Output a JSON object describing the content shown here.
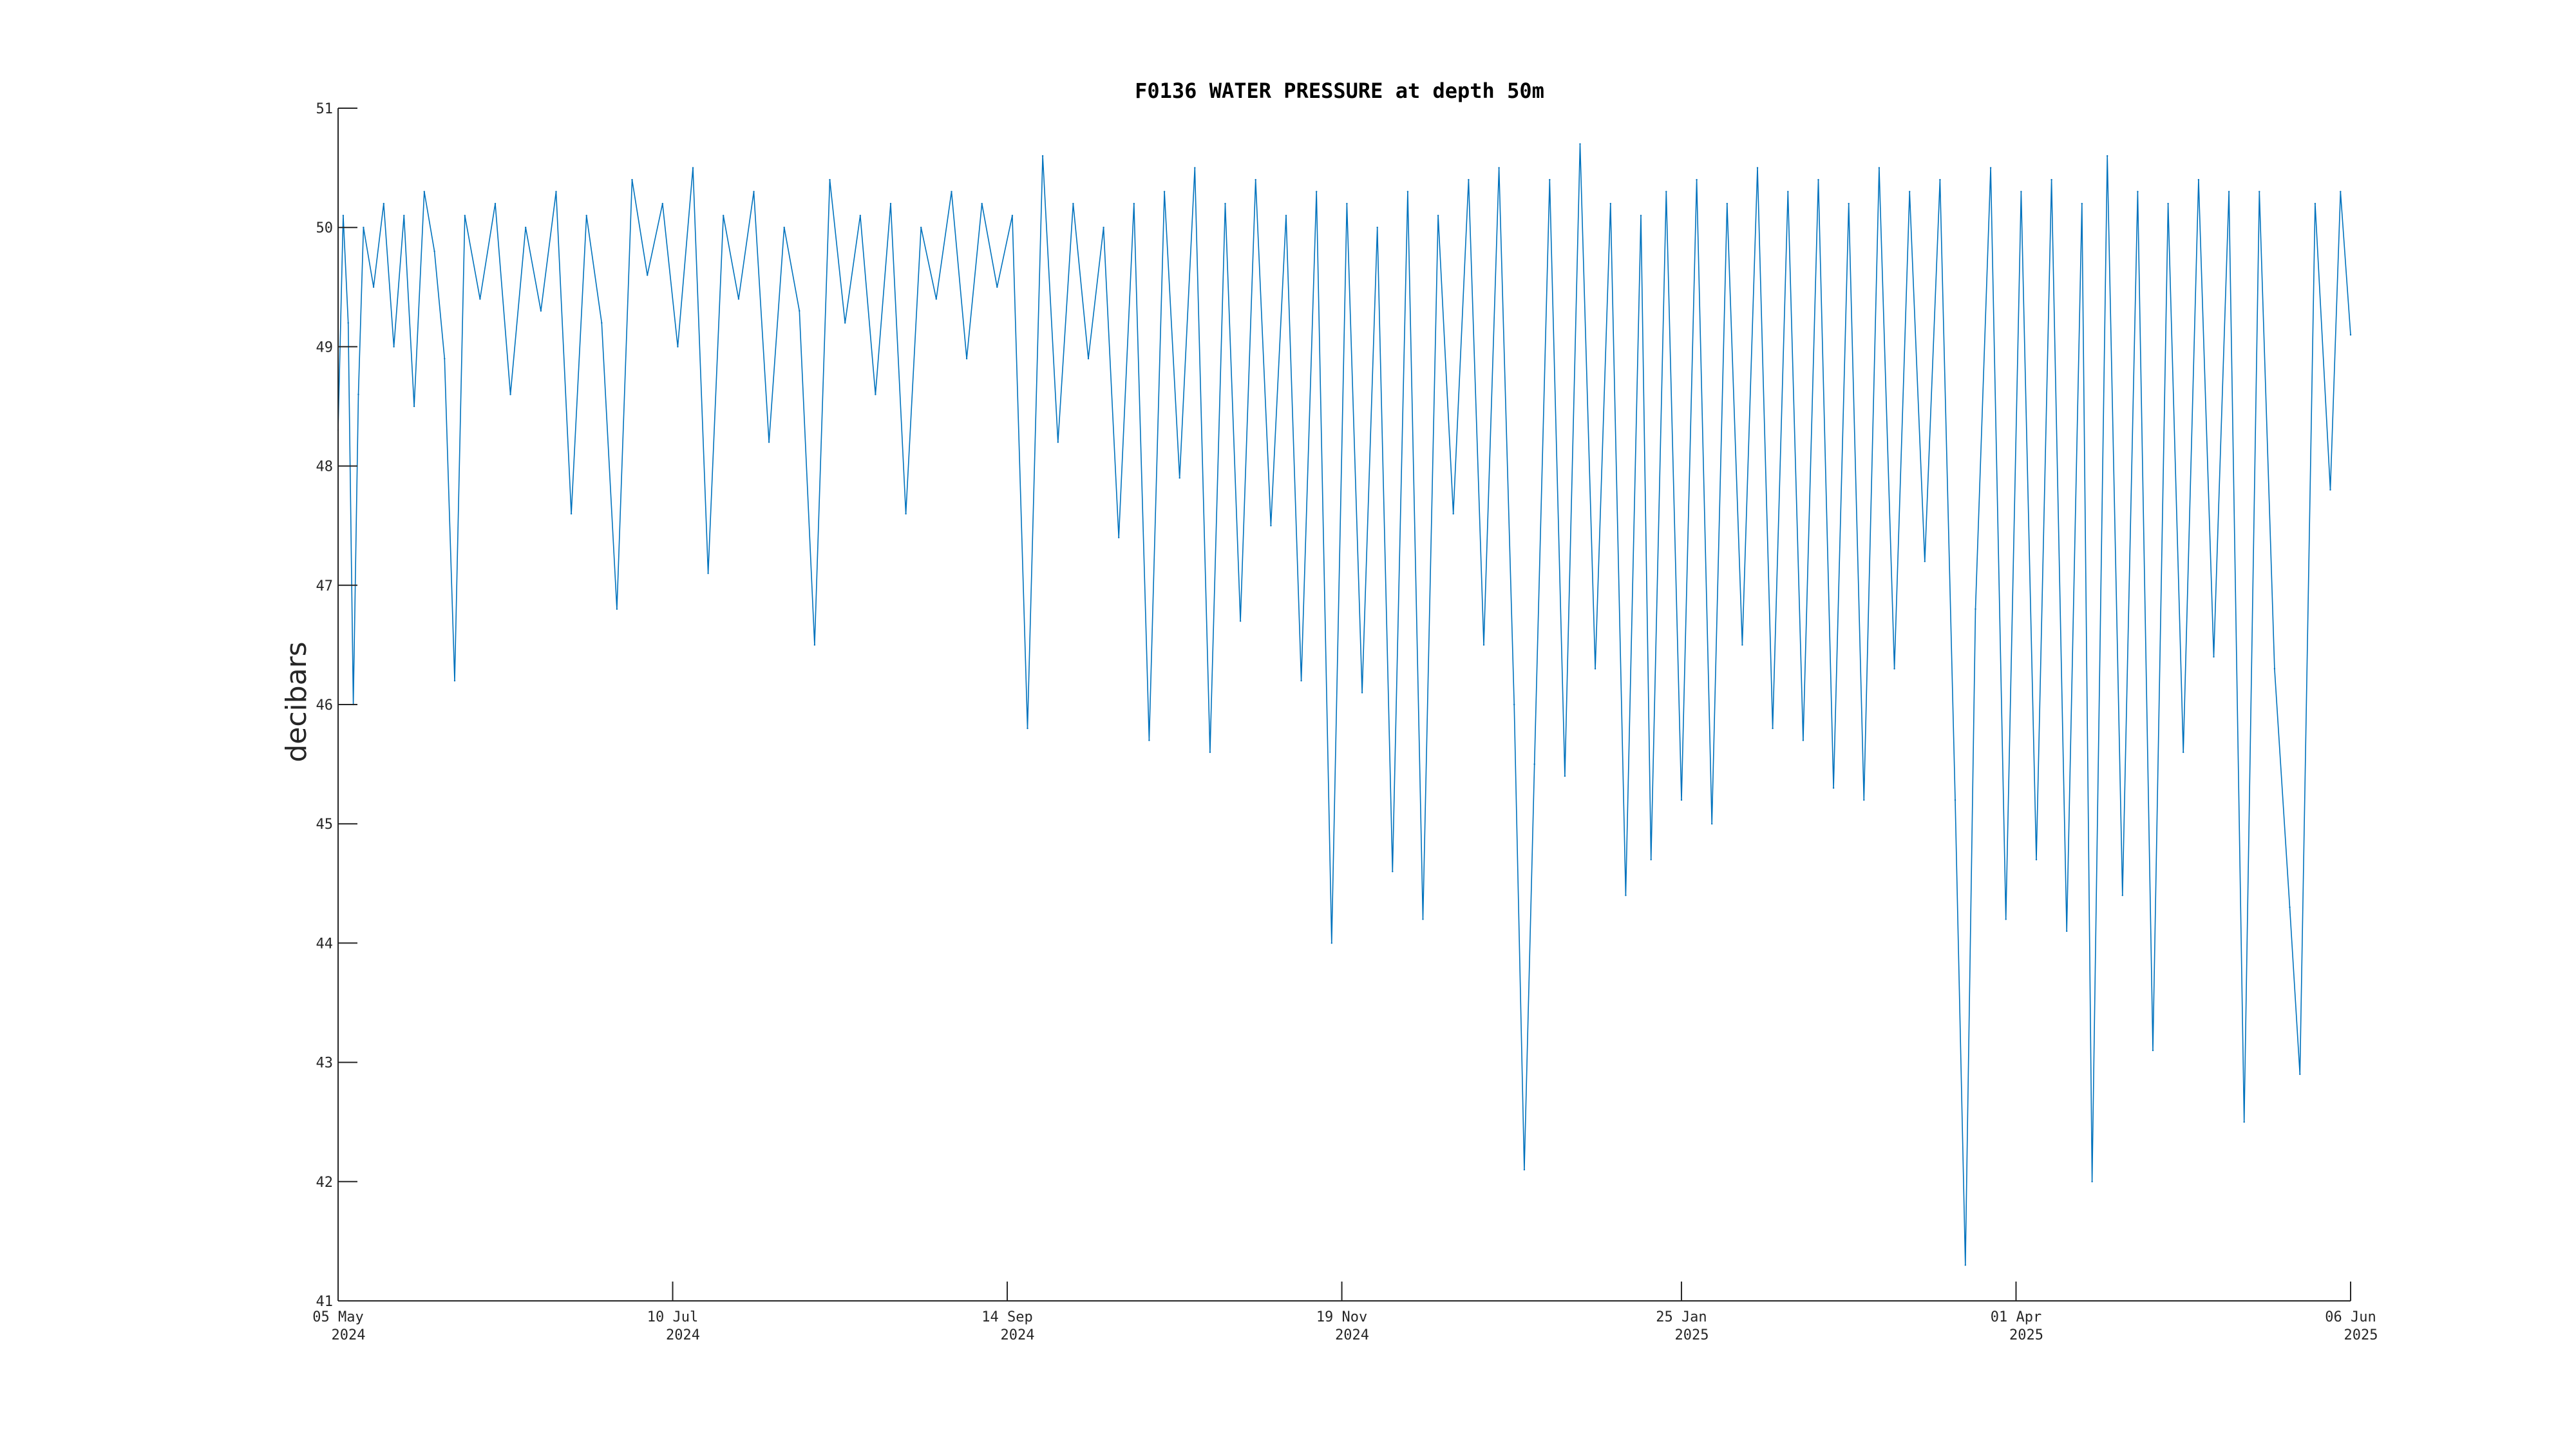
{
  "chart_data": {
    "type": "line",
    "title": "F0136 WATER PRESSURE at depth 50m",
    "xlabel": "",
    "ylabel": "decibars",
    "ylim": [
      41,
      51
    ],
    "yticks": [
      41,
      42,
      43,
      44,
      45,
      46,
      47,
      48,
      49,
      50,
      51
    ],
    "xlim": [
      "2024-05-05",
      "2025-06-06"
    ],
    "xticks": [
      {
        "date": "2024-05-05",
        "line1": "05 May",
        "line2": "2024"
      },
      {
        "date": "2024-07-10",
        "line1": "10 Jul",
        "line2": "2024"
      },
      {
        "date": "2024-09-14",
        "line1": "14 Sep",
        "line2": "2024"
      },
      {
        "date": "2024-11-19",
        "line1": "19 Nov",
        "line2": "2024"
      },
      {
        "date": "2025-01-25",
        "line1": "25 Jan",
        "line2": "2025"
      },
      {
        "date": "2025-04-01",
        "line1": "01 Apr",
        "line2": "2025"
      },
      {
        "date": "2025-06-06",
        "line1": "06 Jun",
        "line2": "2025"
      }
    ],
    "grid": false,
    "colors": {
      "series": "#0072BD",
      "axis": "#262626",
      "text": "#000000"
    },
    "series": [
      {
        "name": "",
        "points": [
          [
            "2024-05-05",
            48.3
          ],
          [
            "2024-05-06",
            50.1
          ],
          [
            "2024-05-07",
            49.2
          ],
          [
            "2024-05-08",
            46.0
          ],
          [
            "2024-05-09",
            48.6
          ],
          [
            "2024-05-10",
            50.0
          ],
          [
            "2024-05-12",
            49.5
          ],
          [
            "2024-05-14",
            50.2
          ],
          [
            "2024-05-16",
            49.0
          ],
          [
            "2024-05-18",
            50.1
          ],
          [
            "2024-05-20",
            48.5
          ],
          [
            "2024-05-22",
            50.3
          ],
          [
            "2024-05-24",
            49.8
          ],
          [
            "2024-05-26",
            48.9
          ],
          [
            "2024-05-28",
            46.2
          ],
          [
            "2024-05-30",
            50.1
          ],
          [
            "2024-06-02",
            49.4
          ],
          [
            "2024-06-05",
            50.2
          ],
          [
            "2024-06-08",
            48.6
          ],
          [
            "2024-06-11",
            50.0
          ],
          [
            "2024-06-14",
            49.3
          ],
          [
            "2024-06-17",
            50.3
          ],
          [
            "2024-06-20",
            47.6
          ],
          [
            "2024-06-23",
            50.1
          ],
          [
            "2024-06-26",
            49.2
          ],
          [
            "2024-06-29",
            46.8
          ],
          [
            "2024-07-02",
            50.4
          ],
          [
            "2024-07-05",
            49.6
          ],
          [
            "2024-07-08",
            50.2
          ],
          [
            "2024-07-11",
            49.0
          ],
          [
            "2024-07-14",
            50.5
          ],
          [
            "2024-07-17",
            47.1
          ],
          [
            "2024-07-20",
            50.1
          ],
          [
            "2024-07-23",
            49.4
          ],
          [
            "2024-07-26",
            50.3
          ],
          [
            "2024-07-29",
            48.2
          ],
          [
            "2024-08-01",
            50.0
          ],
          [
            "2024-08-04",
            49.3
          ],
          [
            "2024-08-07",
            46.5
          ],
          [
            "2024-08-10",
            50.4
          ],
          [
            "2024-08-13",
            49.2
          ],
          [
            "2024-08-16",
            50.1
          ],
          [
            "2024-08-19",
            48.6
          ],
          [
            "2024-08-22",
            50.2
          ],
          [
            "2024-08-25",
            47.6
          ],
          [
            "2024-08-28",
            50.0
          ],
          [
            "2024-08-31",
            49.4
          ],
          [
            "2024-09-03",
            50.3
          ],
          [
            "2024-09-06",
            48.9
          ],
          [
            "2024-09-09",
            50.2
          ],
          [
            "2024-09-12",
            49.5
          ],
          [
            "2024-09-15",
            50.1
          ],
          [
            "2024-09-18",
            45.8
          ],
          [
            "2024-09-21",
            50.6
          ],
          [
            "2024-09-24",
            48.2
          ],
          [
            "2024-09-27",
            50.2
          ],
          [
            "2024-09-30",
            48.9
          ],
          [
            "2024-10-03",
            50.0
          ],
          [
            "2024-10-06",
            47.4
          ],
          [
            "2024-10-09",
            50.2
          ],
          [
            "2024-10-12",
            45.7
          ],
          [
            "2024-10-15",
            50.3
          ],
          [
            "2024-10-18",
            47.9
          ],
          [
            "2024-10-21",
            50.5
          ],
          [
            "2024-10-24",
            45.6
          ],
          [
            "2024-10-27",
            50.2
          ],
          [
            "2024-10-30",
            46.7
          ],
          [
            "2024-11-02",
            50.4
          ],
          [
            "2024-11-05",
            47.5
          ],
          [
            "2024-11-08",
            50.1
          ],
          [
            "2024-11-11",
            46.2
          ],
          [
            "2024-11-14",
            50.3
          ],
          [
            "2024-11-17",
            44.0
          ],
          [
            "2024-11-20",
            50.2
          ],
          [
            "2024-11-23",
            46.1
          ],
          [
            "2024-11-26",
            50.0
          ],
          [
            "2024-11-29",
            44.6
          ],
          [
            "2024-12-02",
            50.3
          ],
          [
            "2024-12-05",
            44.2
          ],
          [
            "2024-12-08",
            50.1
          ],
          [
            "2024-12-11",
            47.6
          ],
          [
            "2024-12-14",
            50.4
          ],
          [
            "2024-12-17",
            46.5
          ],
          [
            "2024-12-20",
            50.5
          ],
          [
            "2024-12-23",
            46.0
          ],
          [
            "2024-12-25",
            42.1
          ],
          [
            "2024-12-27",
            45.5
          ],
          [
            "2024-12-30",
            50.4
          ],
          [
            "2025-01-02",
            45.4
          ],
          [
            "2025-01-05",
            50.7
          ],
          [
            "2025-01-08",
            46.3
          ],
          [
            "2025-01-11",
            50.2
          ],
          [
            "2025-01-14",
            44.4
          ],
          [
            "2025-01-17",
            50.1
          ],
          [
            "2025-01-19",
            44.7
          ],
          [
            "2025-01-22",
            50.3
          ],
          [
            "2025-01-25",
            45.2
          ],
          [
            "2025-01-28",
            50.4
          ],
          [
            "2025-01-31",
            45.0
          ],
          [
            "2025-02-03",
            50.2
          ],
          [
            "2025-02-06",
            46.5
          ],
          [
            "2025-02-09",
            50.5
          ],
          [
            "2025-02-12",
            45.8
          ],
          [
            "2025-02-15",
            50.3
          ],
          [
            "2025-02-18",
            45.7
          ],
          [
            "2025-02-21",
            50.4
          ],
          [
            "2025-02-24",
            45.3
          ],
          [
            "2025-02-27",
            50.2
          ],
          [
            "2025-03-02",
            45.2
          ],
          [
            "2025-03-05",
            50.5
          ],
          [
            "2025-03-08",
            46.3
          ],
          [
            "2025-03-11",
            50.3
          ],
          [
            "2025-03-14",
            47.2
          ],
          [
            "2025-03-17",
            50.4
          ],
          [
            "2025-03-20",
            45.2
          ],
          [
            "2025-03-22",
            41.3
          ],
          [
            "2025-03-24",
            46.8
          ],
          [
            "2025-03-27",
            50.5
          ],
          [
            "2025-03-30",
            44.2
          ],
          [
            "2025-04-02",
            50.3
          ],
          [
            "2025-04-05",
            44.7
          ],
          [
            "2025-04-08",
            50.4
          ],
          [
            "2025-04-11",
            44.1
          ],
          [
            "2025-04-14",
            50.2
          ],
          [
            "2025-04-16",
            42.0
          ],
          [
            "2025-04-19",
            50.6
          ],
          [
            "2025-04-22",
            44.4
          ],
          [
            "2025-04-25",
            50.3
          ],
          [
            "2025-04-28",
            43.1
          ],
          [
            "2025-05-01",
            50.2
          ],
          [
            "2025-05-04",
            45.6
          ],
          [
            "2025-05-07",
            50.4
          ],
          [
            "2025-05-10",
            46.4
          ],
          [
            "2025-05-13",
            50.3
          ],
          [
            "2025-05-16",
            42.5
          ],
          [
            "2025-05-19",
            50.3
          ],
          [
            "2025-05-22",
            46.3
          ],
          [
            "2025-05-25",
            44.3
          ],
          [
            "2025-05-27",
            42.9
          ],
          [
            "2025-05-30",
            50.2
          ],
          [
            "2025-06-02",
            47.8
          ],
          [
            "2025-06-04",
            50.3
          ],
          [
            "2025-06-06",
            49.1
          ]
        ]
      }
    ]
  }
}
